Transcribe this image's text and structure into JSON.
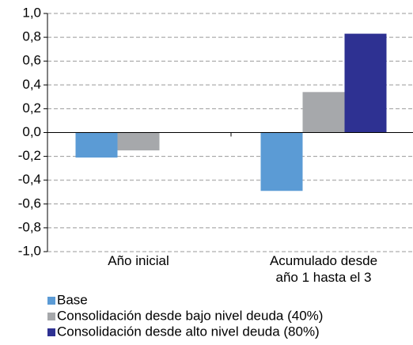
{
  "chart_data": {
    "type": "bar",
    "categories": [
      "Año inicial",
      "Acumulado desde año 1 hasta el 3"
    ],
    "series": [
      {
        "name": "Base",
        "color": "#5b9bd5",
        "values": [
          -0.21,
          -0.49
        ]
      },
      {
        "name": "Consolidación desde bajo nivel deuda (40%)",
        "color": "#a6a8ab",
        "values": [
          -0.15,
          0.34
        ]
      },
      {
        "name": "Consolidación desde alto nivel deuda (80%)",
        "color": "#2e3192",
        "values": [
          null,
          0.83
        ]
      }
    ],
    "ylim": [
      -1.0,
      1.0
    ],
    "yticks": [
      {
        "value": -1.0,
        "label": "-1,0"
      },
      {
        "value": -0.8,
        "label": "-0,8"
      },
      {
        "value": -0.6,
        "label": "-0,6"
      },
      {
        "value": -0.4,
        "label": "-0,4"
      },
      {
        "value": -0.2,
        "label": "-0,2"
      },
      {
        "value": 0.0,
        "label": "0,0"
      },
      {
        "value": 0.2,
        "label": "0,2"
      },
      {
        "value": 0.4,
        "label": "0,4"
      },
      {
        "value": 0.6,
        "label": "0,6"
      },
      {
        "value": 0.8,
        "label": "0,8"
      },
      {
        "value": 1.0,
        "label": "1,0"
      }
    ],
    "grid": true
  }
}
